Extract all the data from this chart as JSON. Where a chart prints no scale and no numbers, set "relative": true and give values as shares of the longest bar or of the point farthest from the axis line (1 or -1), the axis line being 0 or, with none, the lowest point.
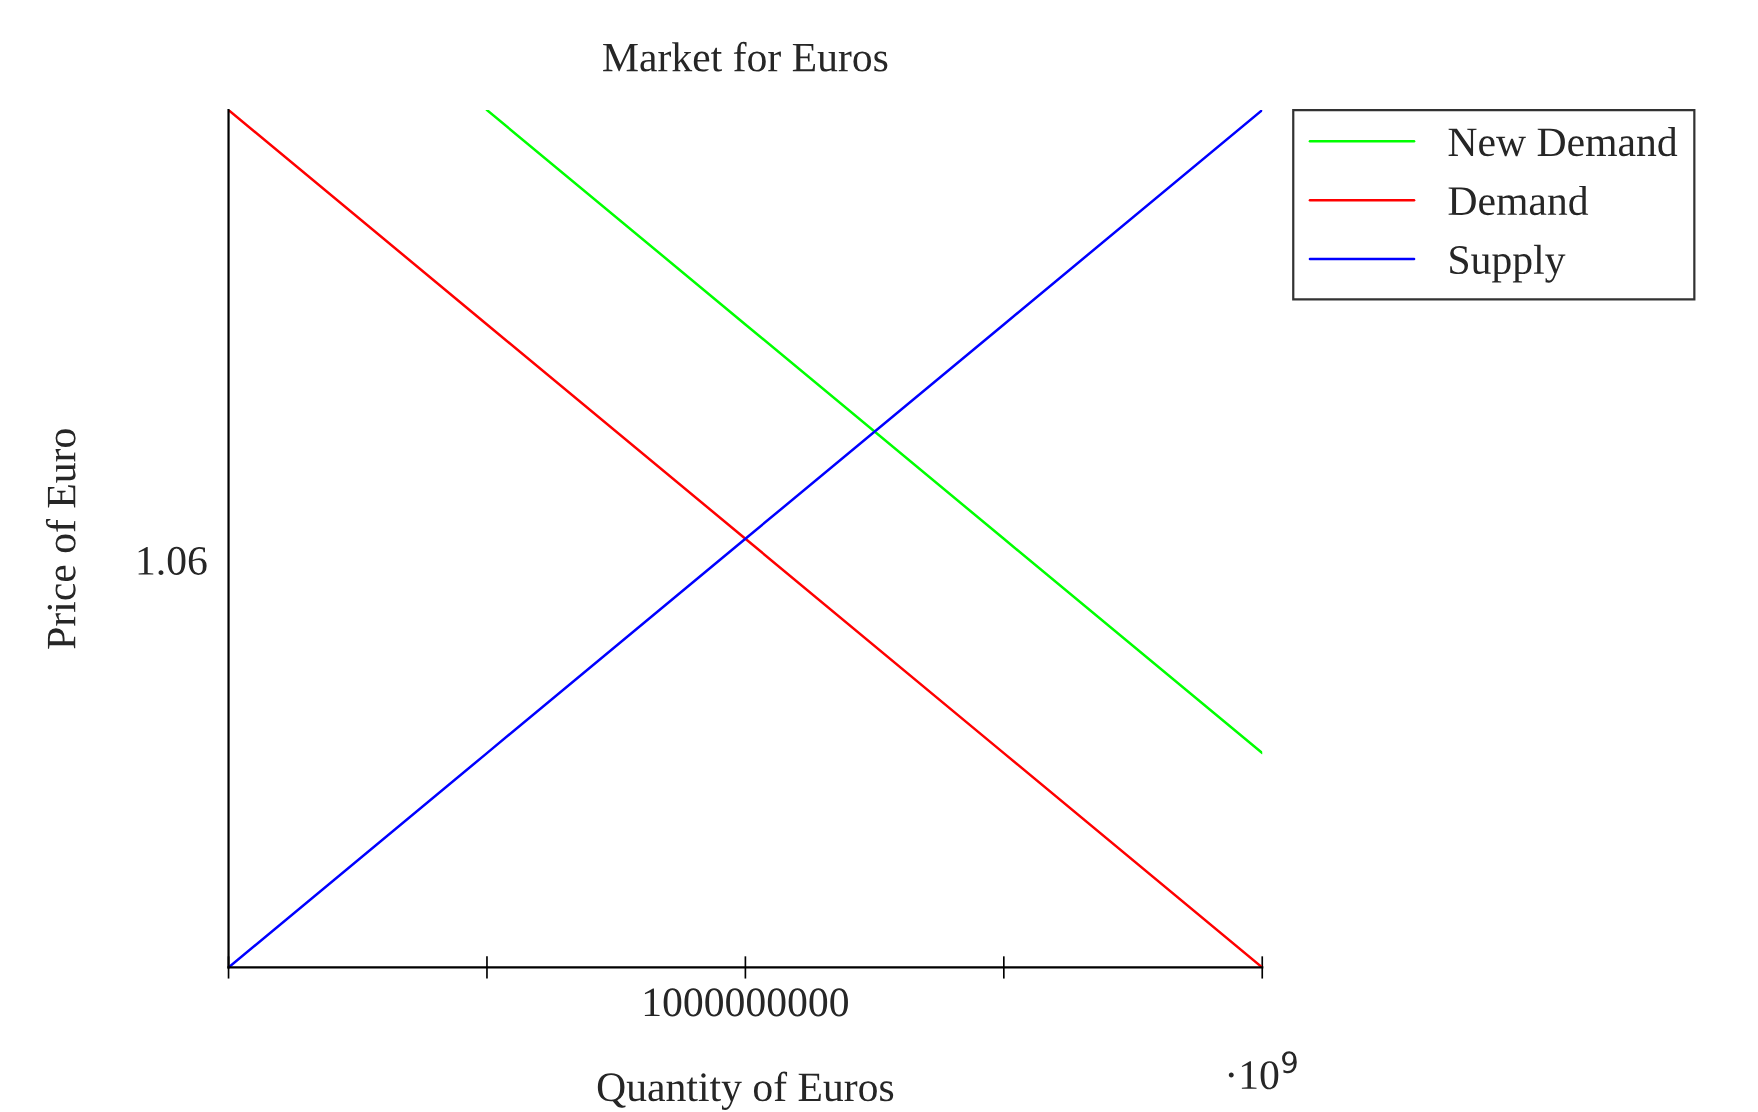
{
  "chart_data": {
    "type": "line",
    "title": "Market for Euros",
    "xlabel": "Quantity of Euros",
    "ylabel": "Price of Euro",
    "relative": true,
    "categories": [
      null,
      null,
      null,
      null,
      null
    ],
    "series": [
      {
        "name": "New Demand",
        "color": "#00ff00",
        "values": [
          null,
          1,
          0.75,
          0.5,
          0.25
        ]
      },
      {
        "name": "Demand",
        "color": "#ff0000",
        "values": [
          1,
          0.75,
          0.5,
          0.25,
          0
        ]
      },
      {
        "name": "Supply",
        "color": "#0000ff",
        "values": [
          0,
          0.25,
          0.5,
          0.75,
          1
        ]
      }
    ],
    "annotations": [
      "1.06",
      "·10$^{9}$",
      "1000000000"
    ],
    "legend": "top right",
    "grid": false,
    "marker": "none",
    "line_style": "solid"
  }
}
